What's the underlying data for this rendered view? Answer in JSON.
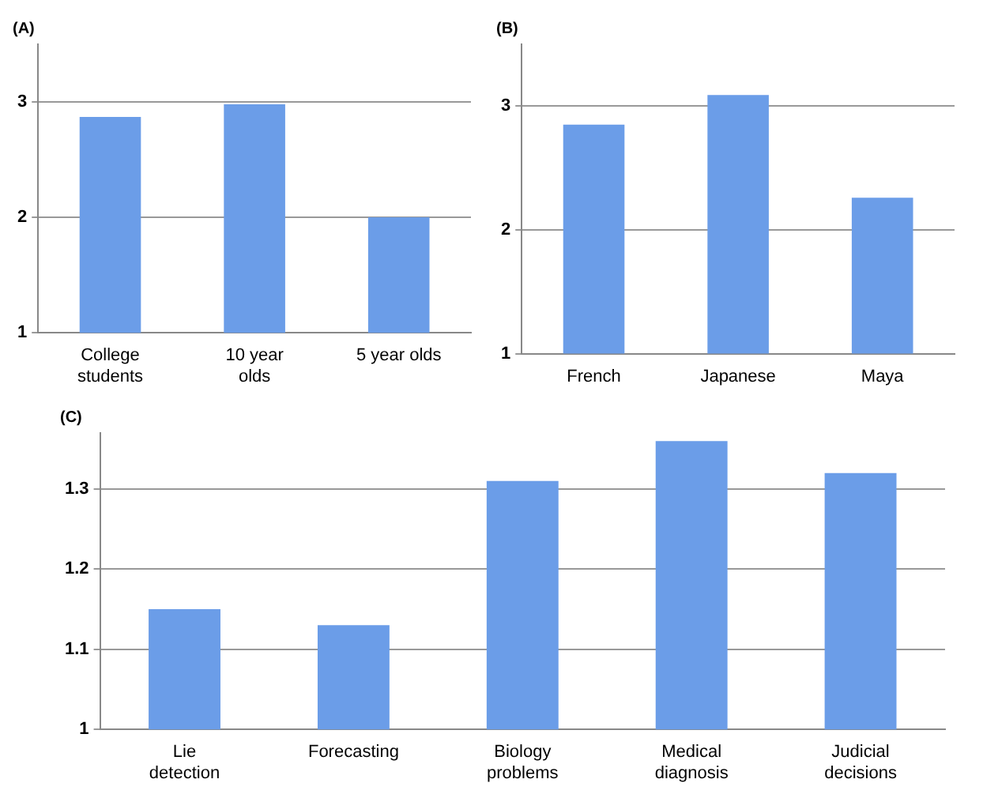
{
  "chart_data": [
    {
      "type": "bar",
      "title": "(A)",
      "categories": [
        "College students",
        "10 year olds",
        "5 year olds"
      ],
      "values": [
        2.87,
        2.98,
        2.0
      ],
      "color": "#6b9de8",
      "ylim": [
        1,
        3.5
      ],
      "yticks": [
        1,
        2,
        3
      ],
      "grid": "y"
    },
    {
      "type": "bar",
      "title": "(B)",
      "categories": [
        "French",
        "Japanese",
        "Maya"
      ],
      "values": [
        2.85,
        3.09,
        2.26
      ],
      "color": "#6b9de8",
      "ylim": [
        1,
        3.5
      ],
      "yticks": [
        1,
        2,
        3
      ],
      "grid": "y"
    },
    {
      "type": "bar",
      "title": "(C)",
      "categories": [
        "Lie detection",
        "Forecasting",
        "Biology problems",
        "Medical diagnosis",
        "Judicial decisions"
      ],
      "values": [
        1.15,
        1.13,
        1.31,
        1.36,
        1.32
      ],
      "color": "#6b9de8",
      "ylim": [
        1,
        1.37
      ],
      "yticks": [
        1,
        1.1,
        1.2,
        1.3
      ],
      "grid": "y"
    }
  ]
}
